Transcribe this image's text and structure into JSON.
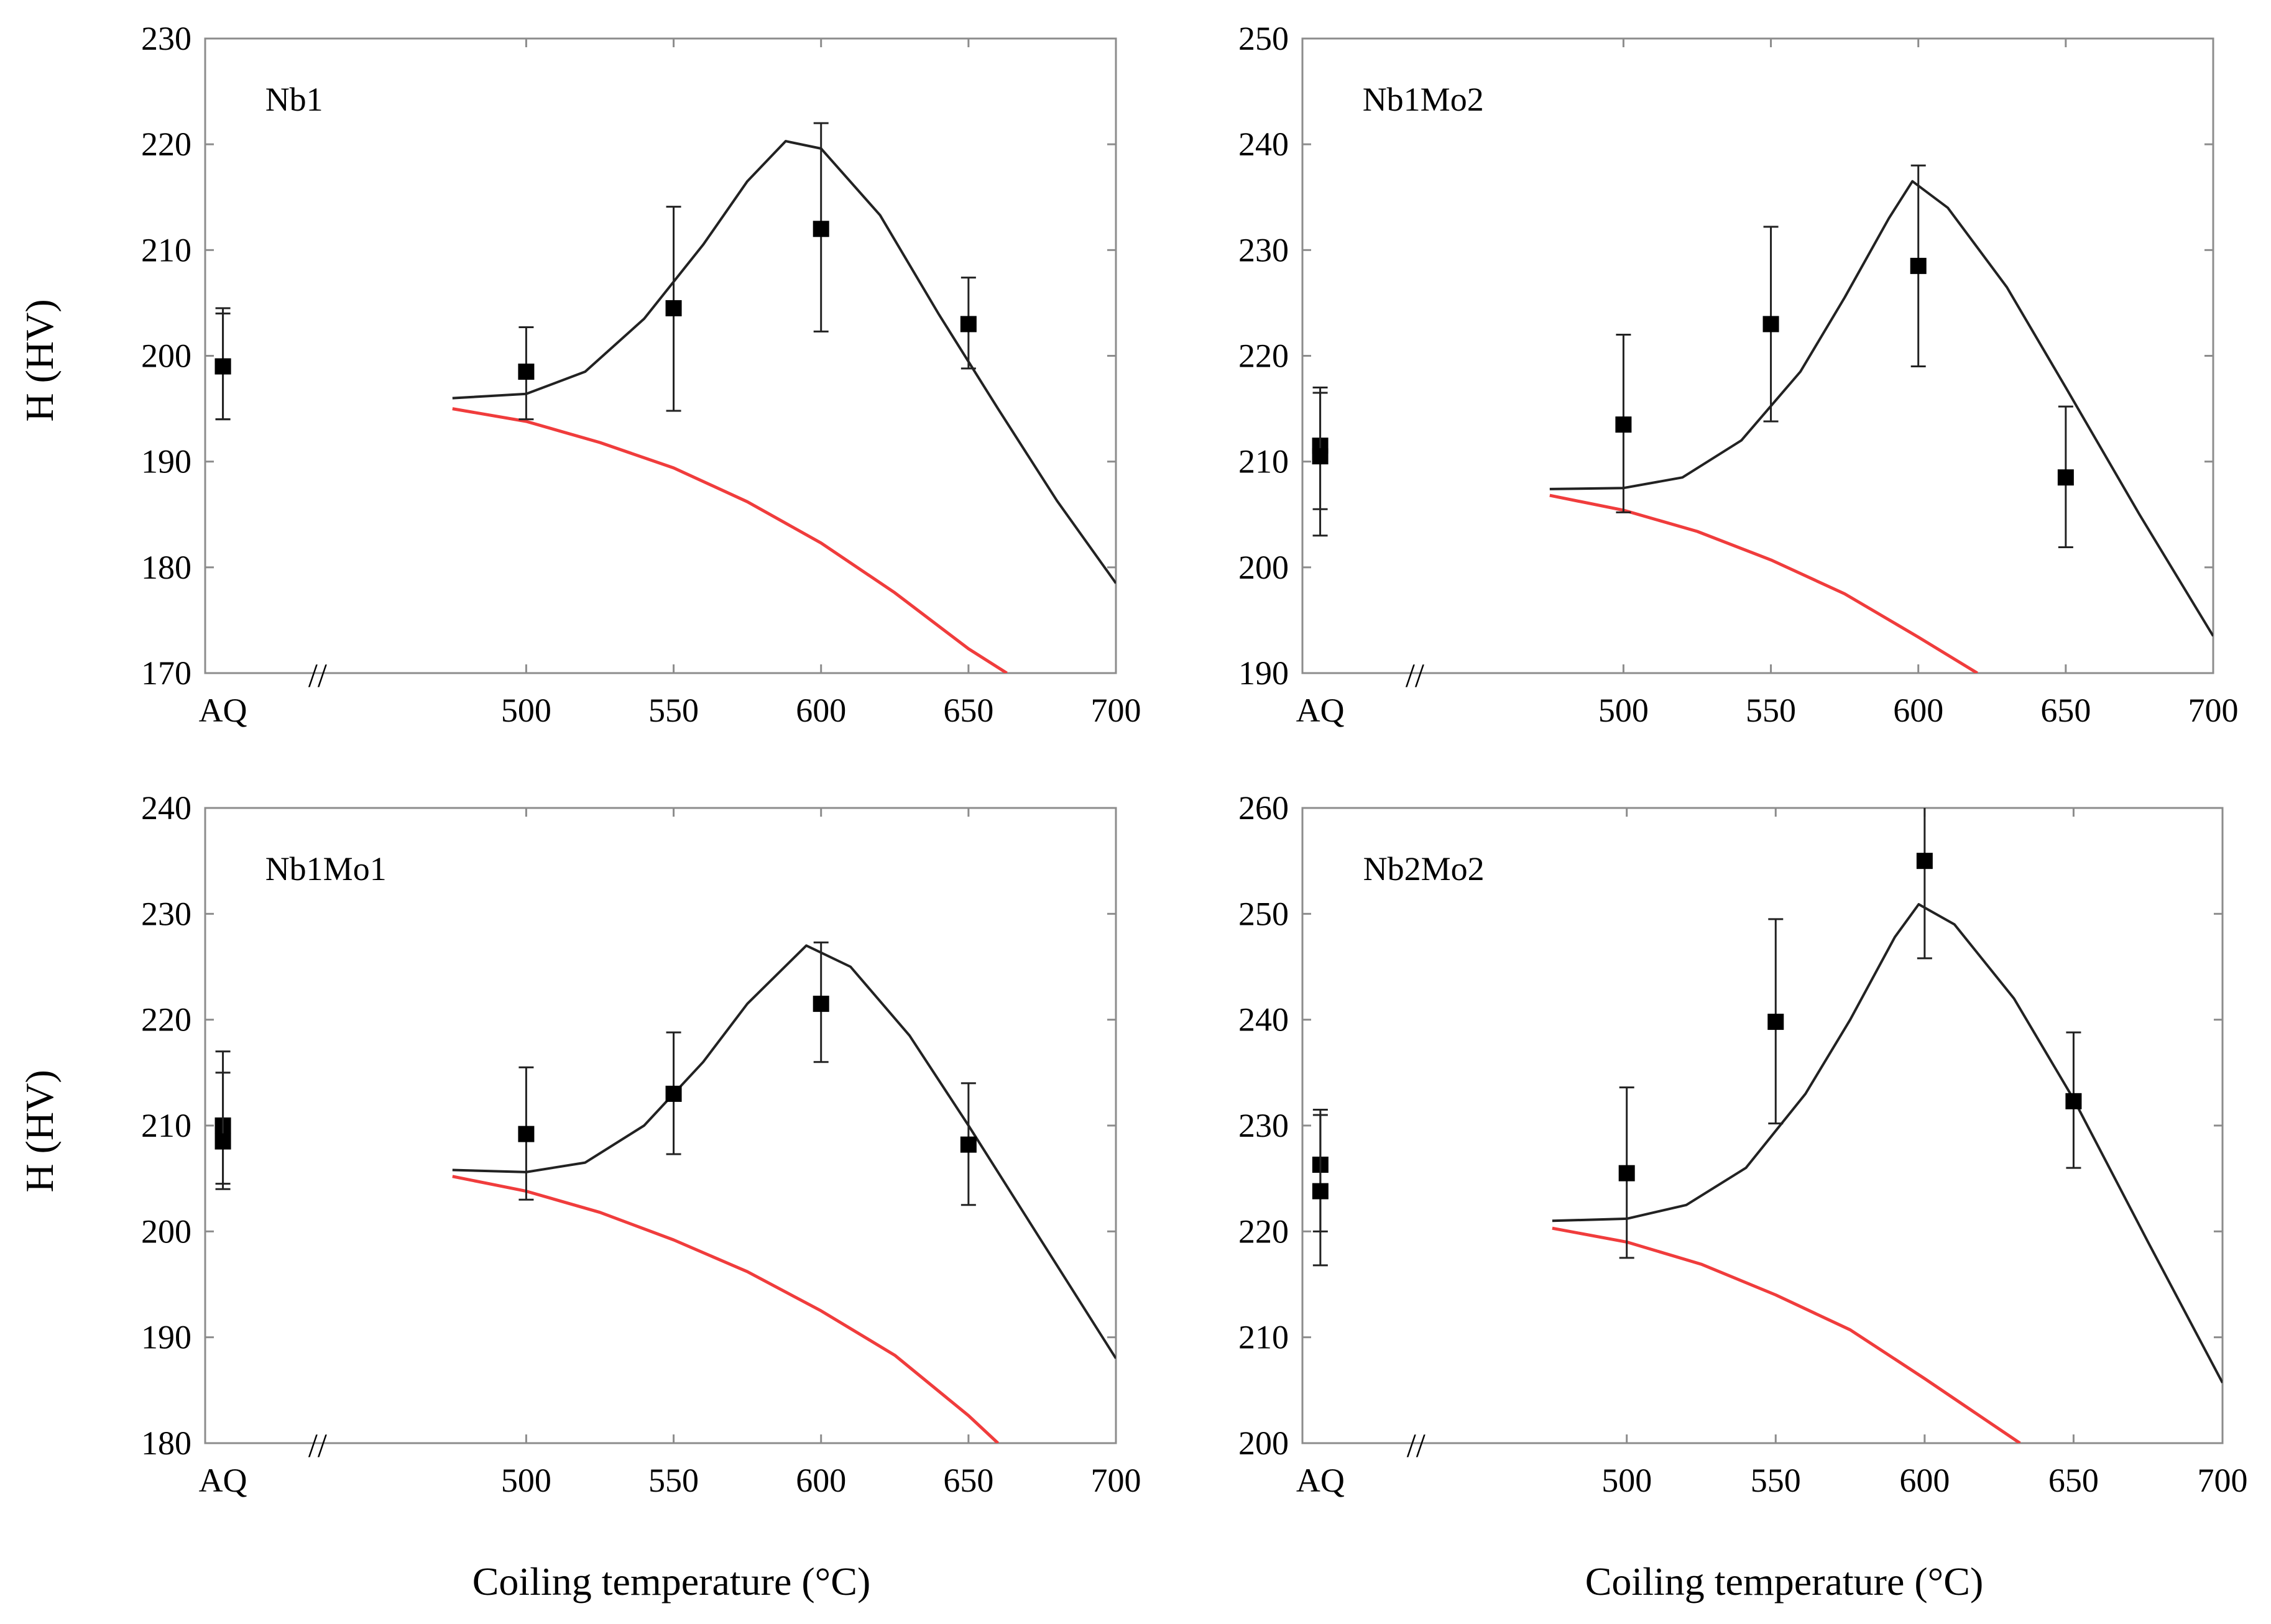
{
  "figure": {
    "xlabel_left": "Coiling temperature (°C)",
    "xlabel_right": "Coiling temperature (°C)",
    "ylabel_top": "H (HV)",
    "ylabel_bottom": "H (HV)",
    "break_mark": "//"
  },
  "colors": {
    "model_peak": "#222222",
    "model_base": "#f03c3c",
    "marker": "#000000"
  },
  "chart_data": [
    {
      "type": "line",
      "title": "Nb1",
      "xlabel": "Coiling temperature (°C)",
      "ylabel": "H (HV)",
      "x_ticks": [
        "AQ",
        "500",
        "550",
        "600",
        "650",
        "700"
      ],
      "ylim": [
        170,
        230
      ],
      "y_ticks": [
        170,
        180,
        190,
        200,
        210,
        220,
        230
      ],
      "aq": {
        "values": [
          199,
          199
        ],
        "error": [
          [
            194,
            204.5
          ],
          [
            194,
            204
          ]
        ]
      },
      "points": [
        {
          "x": 500,
          "y": 198.5,
          "lo": 194,
          "hi": 202.7
        },
        {
          "x": 550,
          "y": 204.5,
          "lo": 194.8,
          "hi": 214.1
        },
        {
          "x": 600,
          "y": 212,
          "lo": 202.3,
          "hi": 222
        },
        {
          "x": 650,
          "y": 203,
          "lo": 198.8,
          "hi": 207.4
        }
      ],
      "series": [
        {
          "color": "#222222",
          "x": [
            475,
            500,
            520,
            540,
            560,
            575,
            588,
            600,
            620,
            640,
            660,
            680,
            700
          ],
          "values": [
            196,
            196.4,
            198.5,
            203.5,
            210.5,
            216.5,
            220.3,
            219.6,
            213.3,
            203.9,
            195,
            186.3,
            178.5
          ]
        },
        {
          "color": "#f03c3c",
          "x": [
            475,
            500,
            525,
            550,
            575,
            600,
            625,
            650,
            663
          ],
          "values": [
            195,
            193.8,
            191.8,
            189.4,
            186.2,
            182.3,
            177.6,
            172.3,
            170
          ]
        }
      ]
    },
    {
      "type": "line",
      "title": "Nb1Mo2",
      "xlabel": "Coiling temperature (°C)",
      "ylabel": "H (HV)",
      "x_ticks": [
        "AQ",
        "500",
        "550",
        "600",
        "650",
        "700"
      ],
      "ylim": [
        190,
        250
      ],
      "y_ticks": [
        190,
        200,
        210,
        220,
        230,
        240,
        250
      ],
      "aq": {
        "values": [
          211.5,
          210.5
        ],
        "error": [
          [
            203,
            217
          ],
          [
            205.5,
            216.5
          ]
        ]
      },
      "points": [
        {
          "x": 500,
          "y": 213.5,
          "lo": 205.2,
          "hi": 222
        },
        {
          "x": 550,
          "y": 223,
          "lo": 213.8,
          "hi": 232.2
        },
        {
          "x": 600,
          "y": 228.5,
          "lo": 219,
          "hi": 238
        },
        {
          "x": 650,
          "y": 208.5,
          "lo": 201.9,
          "hi": 215.2
        }
      ],
      "series": [
        {
          "color": "#222222",
          "x": [
            475,
            500,
            520,
            540,
            560,
            575,
            590,
            598,
            610,
            630,
            650,
            675,
            700
          ],
          "values": [
            207.4,
            207.5,
            208.5,
            212,
            218.5,
            225.5,
            233,
            236.5,
            234,
            226.5,
            217,
            205,
            193.5
          ]
        },
        {
          "color": "#f03c3c",
          "x": [
            475,
            500,
            525,
            550,
            575,
            600,
            620
          ],
          "values": [
            206.8,
            205.4,
            203.4,
            200.7,
            197.5,
            193.4,
            190
          ]
        }
      ]
    },
    {
      "type": "line",
      "title": "Nb1Mo1",
      "xlabel": "Coiling temperature (°C)",
      "ylabel": "H (HV)",
      "x_ticks": [
        "AQ",
        "500",
        "550",
        "600",
        "650",
        "700"
      ],
      "ylim": [
        180,
        240
      ],
      "y_ticks": [
        180,
        190,
        200,
        210,
        220,
        230,
        240
      ],
      "aq": {
        "values": [
          210,
          208.5
        ],
        "error": [
          [
            204,
            217
          ],
          [
            204.5,
            215
          ]
        ]
      },
      "points": [
        {
          "x": 500,
          "y": 209.2,
          "lo": 203,
          "hi": 215.5
        },
        {
          "x": 550,
          "y": 213,
          "lo": 207.3,
          "hi": 218.8
        },
        {
          "x": 600,
          "y": 221.5,
          "lo": 216,
          "hi": 227.3
        },
        {
          "x": 650,
          "y": 208.2,
          "lo": 202.5,
          "hi": 214
        }
      ],
      "series": [
        {
          "color": "#222222",
          "x": [
            475,
            500,
            520,
            540,
            560,
            575,
            595,
            610,
            630,
            650,
            675,
            700
          ],
          "values": [
            205.8,
            205.6,
            206.5,
            210,
            216,
            221.5,
            227,
            225,
            218.5,
            210,
            199,
            188
          ]
        },
        {
          "color": "#f03c3c",
          "x": [
            475,
            500,
            525,
            550,
            575,
            600,
            625,
            650,
            660
          ],
          "values": [
            205.2,
            203.8,
            201.8,
            199.2,
            196.2,
            192.5,
            188.3,
            182.6,
            180
          ]
        }
      ]
    },
    {
      "type": "line",
      "title": "Nb2Mo2",
      "xlabel": "Coiling temperature (°C)",
      "ylabel": "H (HV)",
      "x_ticks": [
        "AQ",
        "500",
        "550",
        "600",
        "650",
        "700"
      ],
      "ylim": [
        200,
        260
      ],
      "y_ticks": [
        200,
        210,
        220,
        230,
        240,
        250,
        260
      ],
      "aq": {
        "values": [
          226.3,
          223.8
        ],
        "error": [
          [
            216.8,
            231.5
          ],
          [
            220,
            231
          ]
        ]
      },
      "points": [
        {
          "x": 500,
          "y": 225.5,
          "lo": 217.5,
          "hi": 233.6
        },
        {
          "x": 550,
          "y": 239.8,
          "lo": 230.2,
          "hi": 249.5
        },
        {
          "x": 600,
          "y": 255,
          "lo": 245.8,
          "hi": 261
        },
        {
          "x": 650,
          "y": 232.3,
          "lo": 226,
          "hi": 238.8
        }
      ],
      "series": [
        {
          "color": "#222222",
          "x": [
            475,
            500,
            520,
            540,
            560,
            575,
            590,
            598,
            610,
            630,
            650,
            675,
            700
          ],
          "values": [
            221,
            221.2,
            222.5,
            226,
            233,
            240,
            247.8,
            250.9,
            249,
            242,
            232.5,
            219,
            205.7
          ]
        },
        {
          "color": "#f03c3c",
          "x": [
            475,
            500,
            525,
            550,
            575,
            600,
            632
          ],
          "values": [
            220.3,
            219,
            216.9,
            214,
            210.7,
            206.1,
            200
          ]
        }
      ]
    }
  ]
}
